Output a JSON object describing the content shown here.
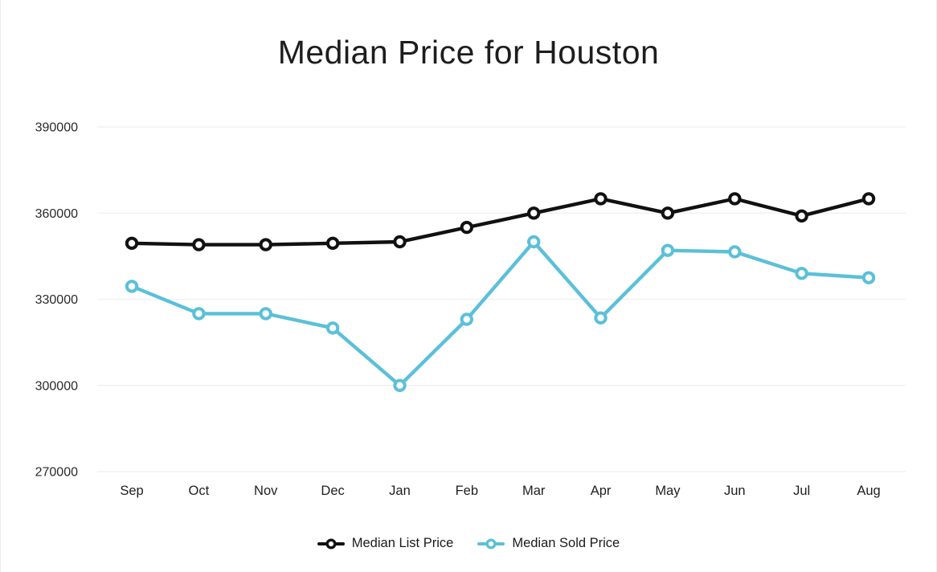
{
  "chart_data": {
    "type": "line",
    "title": "Median Price for Houston",
    "categories": [
      "Sep",
      "Oct",
      "Nov",
      "Dec",
      "Jan",
      "Feb",
      "Mar",
      "Apr",
      "May",
      "Jun",
      "Jul",
      "Aug"
    ],
    "series": [
      {
        "name": "Median List Price",
        "color": "#111111",
        "values": [
          349500,
          349000,
          349000,
          349500,
          350000,
          355000,
          360000,
          365000,
          360000,
          365000,
          359000,
          365000
        ]
      },
      {
        "name": "Median Sold Price",
        "color": "#5bc0d8",
        "values": [
          334500,
          325000,
          325000,
          320000,
          300000,
          323000,
          350000,
          323500,
          347000,
          346500,
          339000,
          337500
        ]
      }
    ],
    "xlabel": "",
    "ylabel": "",
    "ylim": [
      270000,
      390000
    ],
    "yticks": [
      390000,
      360000,
      330000,
      300000,
      270000
    ],
    "grid": "horizontal",
    "gridline_color": "#efefef",
    "tick_label_color": "#2a2a2a",
    "marker": "open-circle",
    "legend_position": "bottom"
  }
}
